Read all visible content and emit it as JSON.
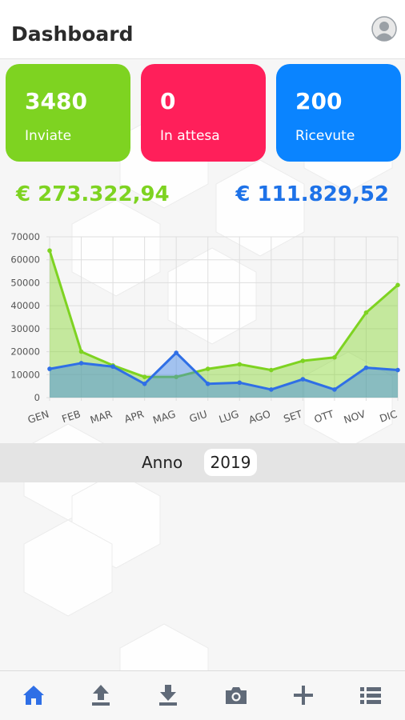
{
  "header": {
    "title": "Dashboard",
    "avatar_icon": "user-avatar-icon"
  },
  "cards": [
    {
      "value": "3480",
      "label": "Inviate",
      "color": "#7ed321"
    },
    {
      "value": "0",
      "label": "In attesa",
      "color": "#ff1f5a"
    },
    {
      "value": "200",
      "label": "Ricevute",
      "color": "#0a84ff"
    }
  ],
  "totals": {
    "sent": {
      "text": "€ 273.322,94",
      "color": "#7ed321"
    },
    "received": {
      "text": "€ 111.829,52",
      "color": "#1e72e8"
    }
  },
  "chart_data": {
    "type": "area",
    "categories": [
      "GEN",
      "FEB",
      "MAR",
      "APR",
      "MAG",
      "GIU",
      "LUG",
      "AGO",
      "SET",
      "OTT",
      "NOV",
      "DIC"
    ],
    "series": [
      {
        "values": [
          64000,
          20000,
          14000,
          9000,
          9000,
          12500,
          14500,
          12000,
          16000,
          17500,
          37000,
          49000
        ],
        "color": "#7ed321"
      },
      {
        "values": [
          12500,
          15000,
          13500,
          6000,
          19500,
          6000,
          6500,
          3500,
          8000,
          3500,
          13000,
          12000
        ],
        "color": "#2f6fe6"
      }
    ],
    "y_ticks": [
      "0",
      "10000",
      "20000",
      "30000",
      "40000",
      "50000",
      "60000",
      "70000"
    ],
    "ylim": [
      0,
      70000
    ],
    "grid": true
  },
  "year": {
    "label": "Anno",
    "value": "2019"
  },
  "nav": [
    {
      "icon": "home-icon",
      "active": true
    },
    {
      "icon": "upload-icon",
      "active": false
    },
    {
      "icon": "download-icon",
      "active": false
    },
    {
      "icon": "camera-icon",
      "active": false
    },
    {
      "icon": "plus-icon",
      "active": false
    },
    {
      "icon": "list-icon",
      "active": false
    }
  ],
  "colors": {
    "nav_active": "#2f6fe6",
    "nav_inactive": "#606a78"
  }
}
